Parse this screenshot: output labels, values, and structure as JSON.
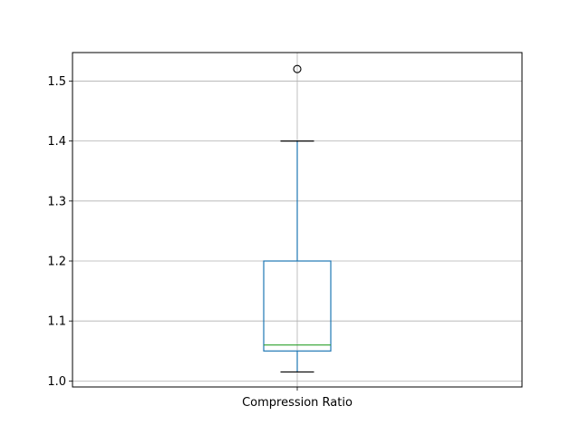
{
  "chart_data": {
    "type": "box",
    "categories": [
      "Compression Ratio"
    ],
    "series": [
      {
        "whisker_low": 1.015,
        "q1": 1.05,
        "median": 1.06,
        "q3": 1.2,
        "whisker_high": 1.4,
        "outliers": [
          1.52
        ]
      }
    ],
    "title": "",
    "xlabel": "",
    "ylabel": "",
    "ylim": [
      0.99,
      1.5475
    ],
    "yticks": [
      1.0,
      1.1,
      1.2,
      1.3,
      1.4,
      1.5
    ],
    "ytick_labels": [
      "1.0",
      "1.1",
      "1.2",
      "1.3",
      "1.4",
      "1.5"
    ],
    "grid": true,
    "colors": {
      "box": "#1f77b4",
      "median": "#2ca02c",
      "whisker_cap": "#000000",
      "grid": "#b0b0b0"
    }
  }
}
